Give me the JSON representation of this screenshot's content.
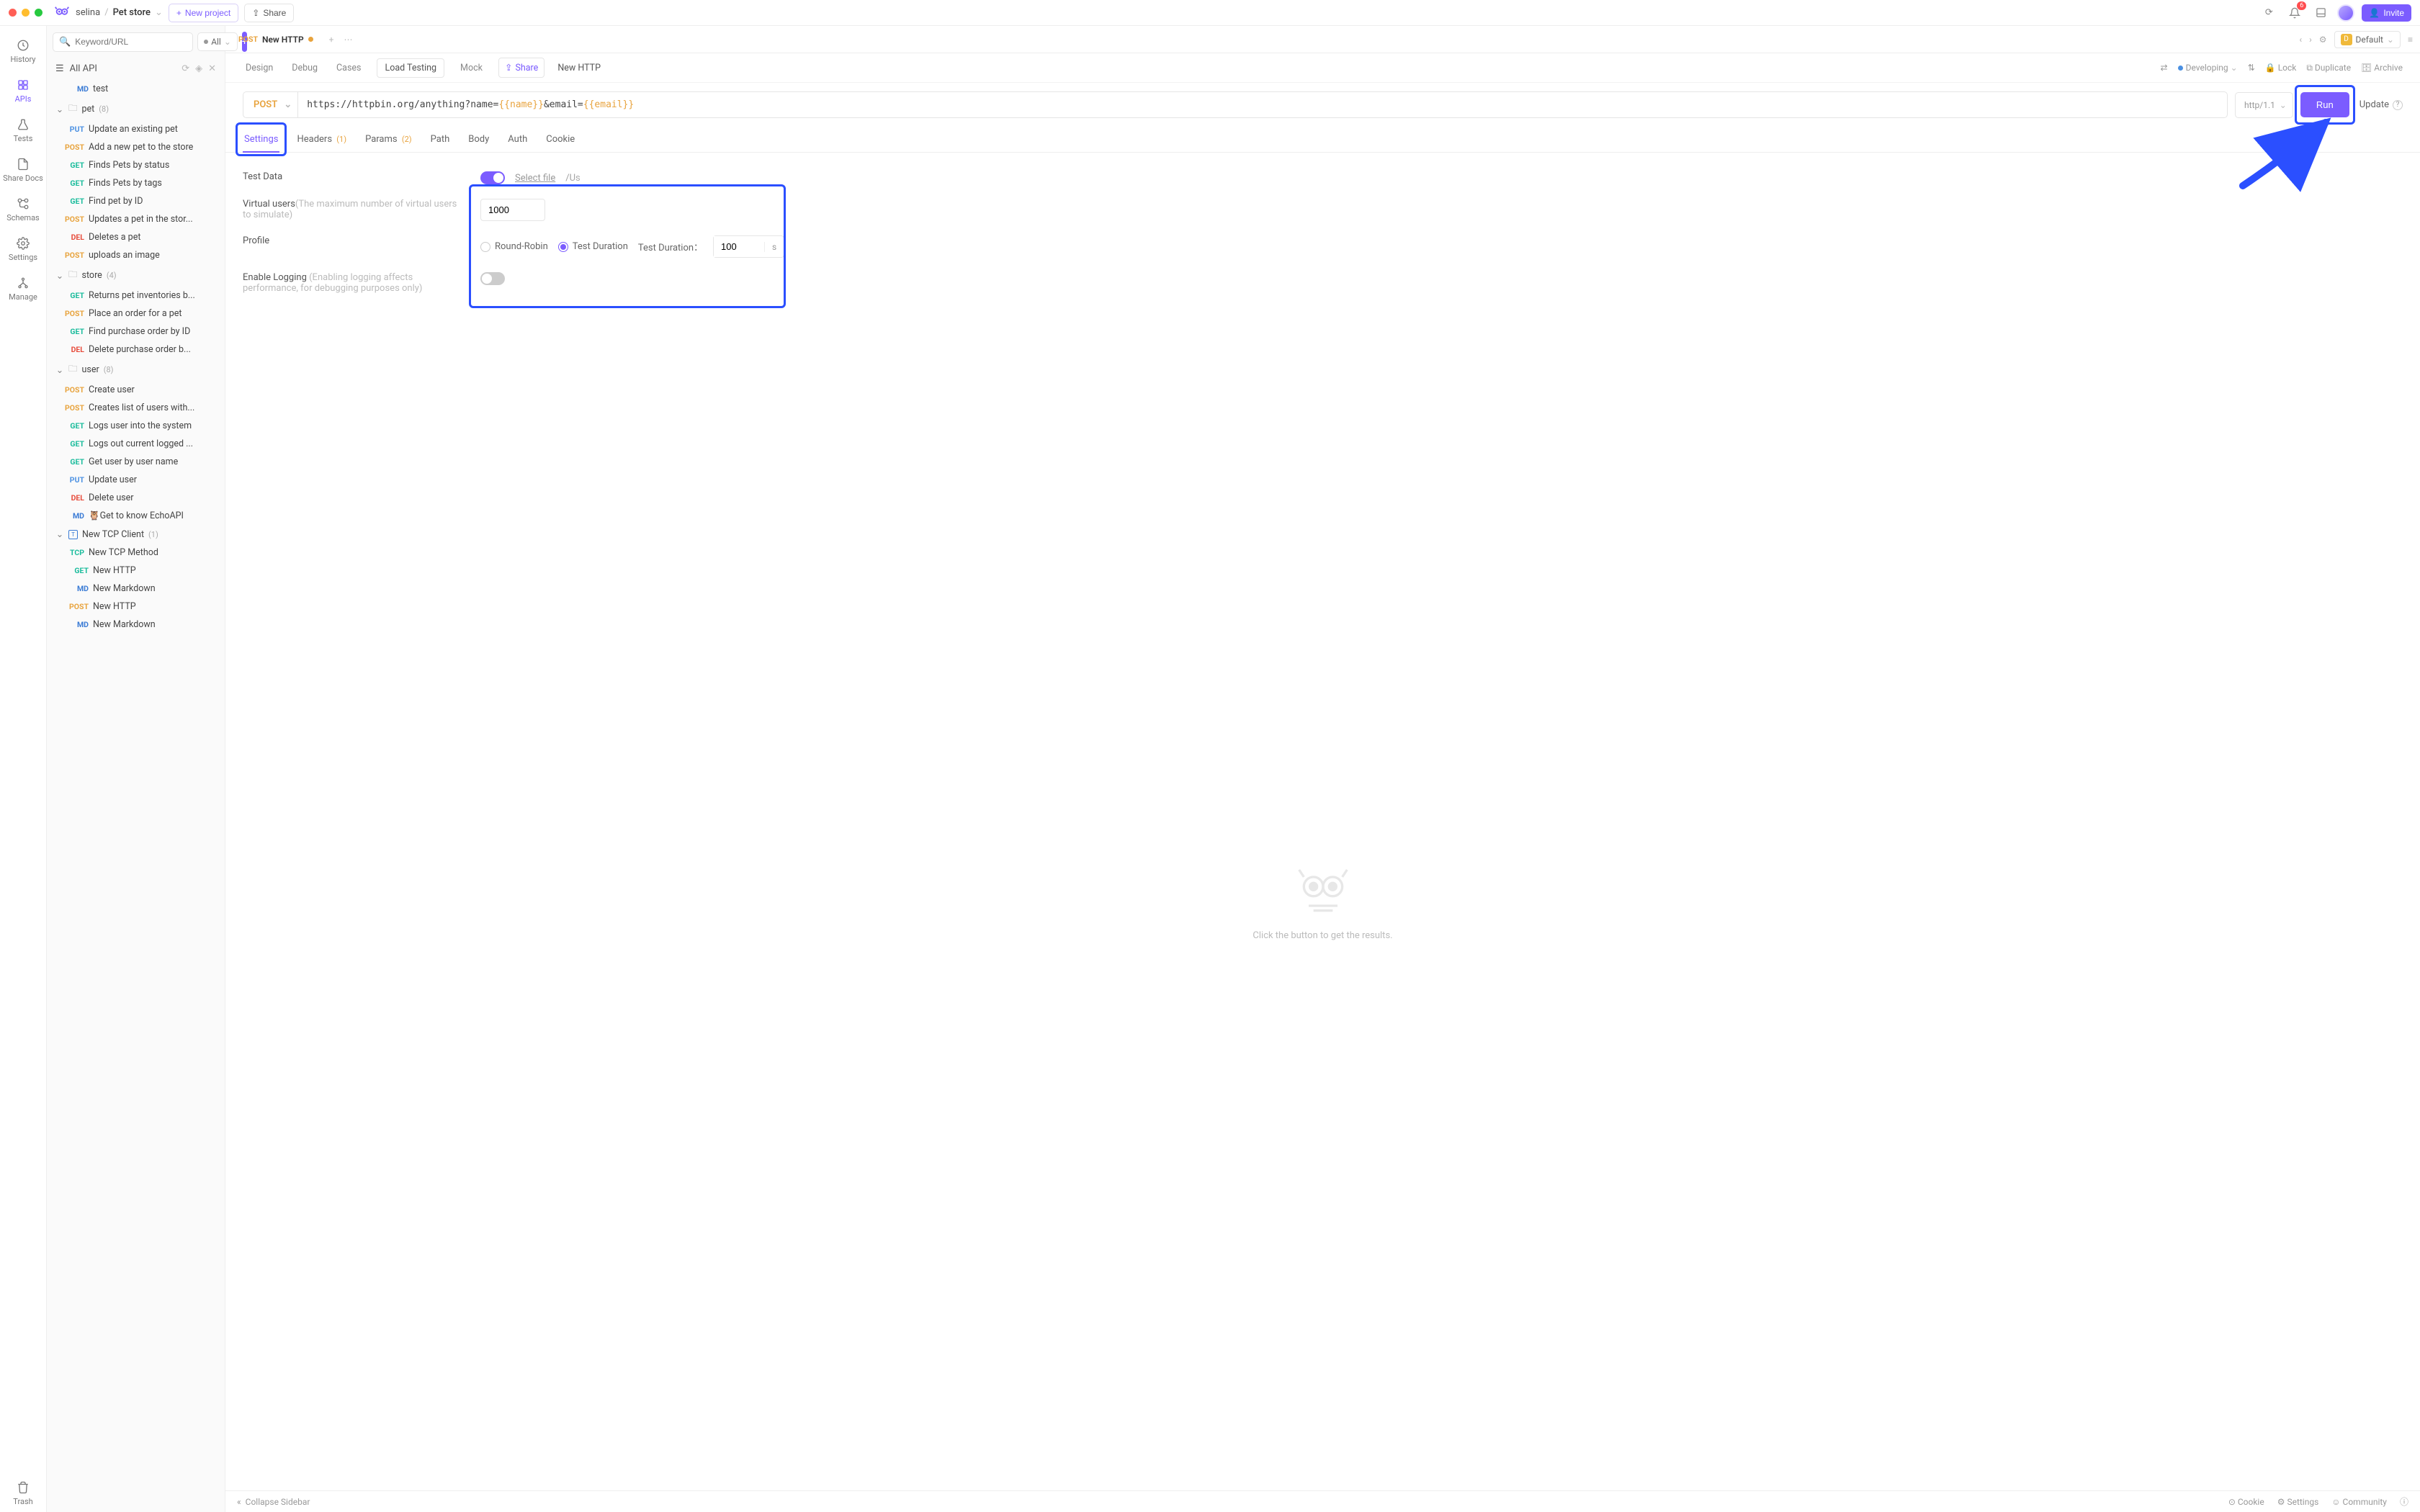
{
  "colors": {
    "accent": "#7b5cff",
    "warning": "#e8a33d",
    "highlight": "#2b4fff"
  },
  "titlebar": {
    "workspace": "selina",
    "project": "Pet store",
    "new_project": "New project",
    "share": "Share",
    "notification_count": "6",
    "invite": "Invite"
  },
  "rail": {
    "items": [
      {
        "label": "History"
      },
      {
        "label": "APIs"
      },
      {
        "label": "Tests"
      },
      {
        "label": "Share Docs"
      },
      {
        "label": "Schemas"
      },
      {
        "label": "Settings"
      },
      {
        "label": "Manage"
      }
    ],
    "trash": "Trash"
  },
  "sidebar": {
    "search_placeholder": "Keyword/URL",
    "filter": "All",
    "header": "All API",
    "tree": [
      {
        "type": "leaf",
        "method": "MD",
        "label": "test",
        "indent": 1
      },
      {
        "type": "folder",
        "label": "pet",
        "count": "(8)",
        "open": true
      },
      {
        "type": "leaf",
        "method": "PUT",
        "label": "Update an existing pet"
      },
      {
        "type": "leaf",
        "method": "POST",
        "label": "Add a new pet to the store"
      },
      {
        "type": "leaf",
        "method": "GET",
        "label": "Finds Pets by status"
      },
      {
        "type": "leaf",
        "method": "GET",
        "label": "Finds Pets by tags"
      },
      {
        "type": "leaf",
        "method": "GET",
        "label": "Find pet by ID"
      },
      {
        "type": "leaf",
        "method": "POST",
        "label": "Updates a pet in the stor..."
      },
      {
        "type": "leaf",
        "method": "DEL",
        "label": "Deletes a pet"
      },
      {
        "type": "leaf",
        "method": "POST",
        "label": "uploads an image"
      },
      {
        "type": "folder",
        "label": "store",
        "count": "(4)",
        "open": true
      },
      {
        "type": "leaf",
        "method": "GET",
        "label": "Returns pet inventories b..."
      },
      {
        "type": "leaf",
        "method": "POST",
        "label": "Place an order for a pet"
      },
      {
        "type": "leaf",
        "method": "GET",
        "label": "Find purchase order by ID"
      },
      {
        "type": "leaf",
        "method": "DEL",
        "label": "Delete purchase order b..."
      },
      {
        "type": "folder",
        "label": "user",
        "count": "(8)",
        "open": true
      },
      {
        "type": "leaf",
        "method": "POST",
        "label": "Create user"
      },
      {
        "type": "leaf",
        "method": "POST",
        "label": "Creates list of users with..."
      },
      {
        "type": "leaf",
        "method": "GET",
        "label": "Logs user into the system"
      },
      {
        "type": "leaf",
        "method": "GET",
        "label": "Logs out current logged ..."
      },
      {
        "type": "leaf",
        "method": "GET",
        "label": "Get user by user name"
      },
      {
        "type": "leaf",
        "method": "PUT",
        "label": "Update user"
      },
      {
        "type": "leaf",
        "method": "DEL",
        "label": "Delete user"
      },
      {
        "type": "leaf",
        "method": "MD",
        "label": "🦉Get to know EchoAPI"
      },
      {
        "type": "folder",
        "label": "New TCP Client",
        "count": "(1)",
        "open": true,
        "icon": "tcp"
      },
      {
        "type": "leaf",
        "method": "TCP",
        "label": "New TCP Method"
      },
      {
        "type": "leaf",
        "method": "GET",
        "label": "New HTTP",
        "indent": 1
      },
      {
        "type": "leaf",
        "method": "MD",
        "label": "New Markdown",
        "indent": 1
      },
      {
        "type": "leaf",
        "method": "POST",
        "label": "New HTTP",
        "indent": 1
      },
      {
        "type": "leaf",
        "method": "MD",
        "label": "New Markdown",
        "indent": 1
      }
    ]
  },
  "tabs": {
    "active": {
      "method": "POST",
      "title": "New HTTP"
    },
    "env": "Default"
  },
  "toolbar": {
    "items": [
      "Design",
      "Debug",
      "Cases",
      "Load Testing",
      "Mock"
    ],
    "active": "Load Testing",
    "share": "Share",
    "title": "New HTTP",
    "status": "Developing",
    "actions": {
      "lock": "Lock",
      "duplicate": "Duplicate",
      "archive": "Archive"
    }
  },
  "request": {
    "method": "POST",
    "url_prefix": "https://httpbin.org/anything?name=",
    "var1": "{{name}}",
    "url_mid": "&email=",
    "var2": "{{email}}",
    "protocol": "http/1.1",
    "run": "Run",
    "update": "Update"
  },
  "subtabs": {
    "items": [
      {
        "label": "Settings",
        "active": true
      },
      {
        "label": "Headers",
        "pill": "(1)"
      },
      {
        "label": "Params",
        "pill": "(2)"
      },
      {
        "label": "Path"
      },
      {
        "label": "Body"
      },
      {
        "label": "Auth"
      },
      {
        "label": "Cookie"
      }
    ]
  },
  "settings": {
    "test_data": {
      "label": "Test Data",
      "select_file": "Select file",
      "path_preview": "/Us"
    },
    "virtual_users": {
      "label": "Virtual users",
      "hint": "(The maximum number of virtual users to simulate)",
      "value": "1000"
    },
    "profile": {
      "label": "Profile",
      "round_robin": "Round-Robin",
      "test_duration": "Test Duration",
      "duration_label": "Test Duration：",
      "duration_value": "100",
      "duration_unit": "s"
    },
    "logging": {
      "label": "Enable Logging ",
      "hint": "(Enabling logging affects performance, for debugging purposes only)"
    }
  },
  "empty": {
    "hint": "Click the button to get the results."
  },
  "statusbar": {
    "collapse": "Collapse Sidebar",
    "cookie": "Cookie",
    "settings": "Settings",
    "community": "Community"
  }
}
